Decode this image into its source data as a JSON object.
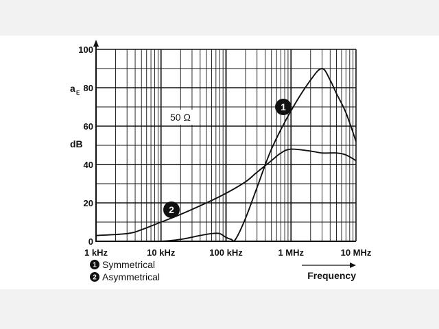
{
  "chart_data": {
    "type": "line",
    "x_scale": "log",
    "x_ticks": [
      {
        "value": 1000,
        "label": "1 kHz"
      },
      {
        "value": 10000,
        "label": "10 kHz"
      },
      {
        "value": 100000,
        "label": "100 kHz"
      },
      {
        "value": 1000000,
        "label": "1 MHz"
      },
      {
        "value": 10000000,
        "label": "10 MHz"
      }
    ],
    "y_ticks": [
      0,
      20,
      40,
      60,
      80,
      100
    ],
    "xlim": [
      1000,
      10000000
    ],
    "ylim": [
      0,
      100
    ],
    "ylabel": "dB",
    "ylabel_symbol": "a",
    "ylabel_subscript": "E",
    "xlabel": "Frequency",
    "annotation": "50 Ω",
    "series": [
      {
        "name": "Symmetrical",
        "marker": "1",
        "x": [
          1000,
          5000,
          10000,
          20000,
          40000,
          60000,
          80000,
          100000,
          120000,
          140000,
          200000,
          300000,
          500000,
          1000000,
          2000000,
          3000000,
          4000000,
          5000000,
          7000000,
          10000000
        ],
        "y": [
          0,
          0,
          0,
          1,
          3,
          4,
          4,
          2,
          1,
          1,
          12,
          28,
          48,
          68,
          84,
          90,
          84,
          77,
          67,
          52
        ]
      },
      {
        "name": "Asymmetrical",
        "marker": "2",
        "x": [
          1000,
          3000,
          5000,
          10000,
          20000,
          50000,
          100000,
          200000,
          300000,
          500000,
          700000,
          1000000,
          2000000,
          3000000,
          5000000,
          7000000,
          10000000
        ],
        "y": [
          3,
          4,
          6,
          10,
          14,
          20,
          25,
          31,
          36,
          42,
          46,
          48,
          47,
          46,
          46,
          45,
          42
        ]
      }
    ],
    "legend": [
      {
        "marker": "1",
        "label": "Symmetrical"
      },
      {
        "marker": "2",
        "label": "Asymmetrical"
      }
    ]
  }
}
